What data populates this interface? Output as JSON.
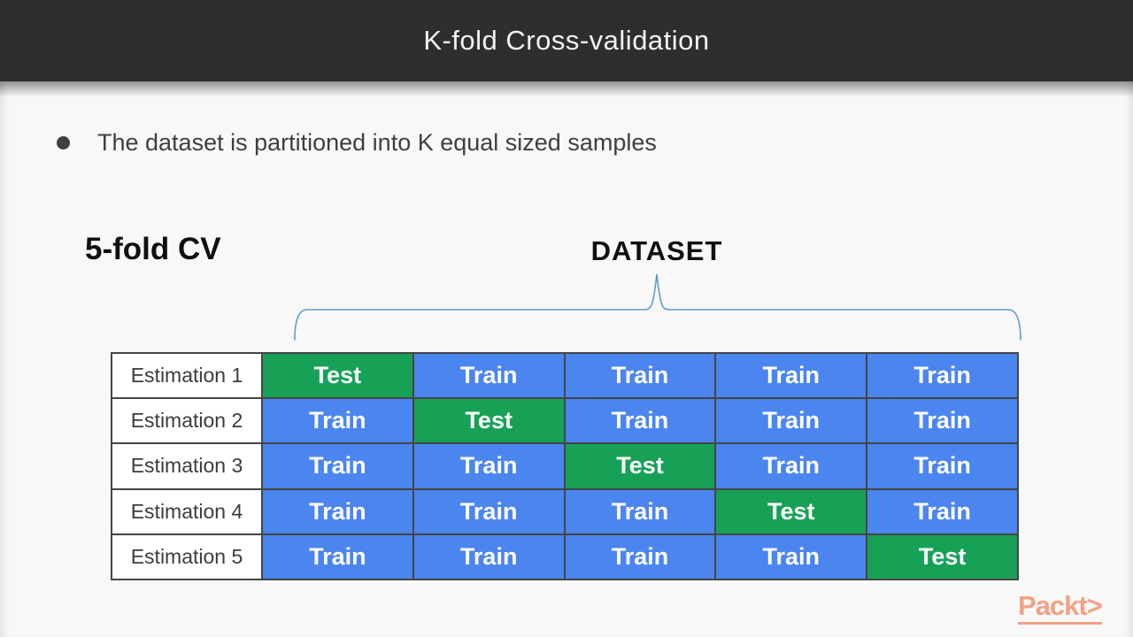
{
  "header": {
    "title": "K-fold Cross-validation"
  },
  "bullet": {
    "text": "The dataset is partitioned into K equal sized samples"
  },
  "diagram": {
    "fold_label": "5-fold CV",
    "dataset_label": "DATASET",
    "table": {
      "row_labels": [
        "Estimation 1",
        "Estimation 2",
        "Estimation 3",
        "Estimation 4",
        "Estimation 5"
      ],
      "rows": [
        [
          "Test",
          "Train",
          "Train",
          "Train",
          "Train"
        ],
        [
          "Train",
          "Test",
          "Train",
          "Train",
          "Train"
        ],
        [
          "Train",
          "Train",
          "Test",
          "Train",
          "Train"
        ],
        [
          "Train",
          "Train",
          "Train",
          "Test",
          "Train"
        ],
        [
          "Train",
          "Train",
          "Train",
          "Train",
          "Test"
        ]
      ]
    }
  },
  "footer": {
    "logo_text": "Packt>"
  },
  "colors": {
    "header_bg": "#2e2e2e",
    "train_blue": "#4b85ef",
    "test_green": "#17a157",
    "brace_blue": "#5b9ec9",
    "packt_orange": "#f2a284"
  }
}
